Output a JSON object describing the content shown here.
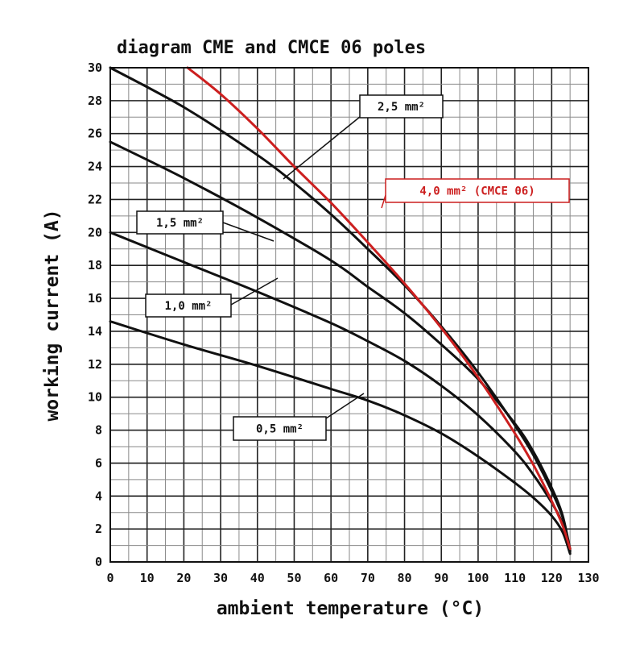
{
  "chart_data": {
    "type": "line",
    "title": "diagram CME and CMCE 06 poles",
    "xlabel": "ambient temperature (°C)",
    "ylabel": "working current (A)",
    "xlim": [
      0,
      130
    ],
    "ylim": [
      0,
      30
    ],
    "grid": true,
    "x_ticks": [
      "0",
      "10",
      "20",
      "30",
      "40",
      "50",
      "60",
      "70",
      "80",
      "90",
      "100",
      "110",
      "120",
      "130"
    ],
    "y_ticks": [
      "0",
      "2",
      "4",
      "6",
      "8",
      "10",
      "12",
      "14",
      "16",
      "18",
      "20",
      "22",
      "24",
      "26",
      "28",
      "30"
    ],
    "series": [
      {
        "name": "0,5 mm²",
        "color": "#111111",
        "x": [
          0,
          20,
          40,
          60,
          70,
          80,
          90,
          100,
          110,
          115,
          120,
          123,
          125
        ],
        "y": [
          14.6,
          13.2,
          11.9,
          10.5,
          9.8,
          8.9,
          7.8,
          6.4,
          4.8,
          3.9,
          2.8,
          1.8,
          0.5
        ]
      },
      {
        "name": "1,0 mm²",
        "color": "#111111",
        "x": [
          0,
          20,
          40,
          60,
          70,
          80,
          90,
          100,
          110,
          115,
          120,
          123,
          125
        ],
        "y": [
          20.0,
          18.2,
          16.4,
          14.5,
          13.4,
          12.2,
          10.7,
          8.9,
          6.7,
          5.3,
          3.6,
          2.3,
          0.6
        ]
      },
      {
        "name": "1,5 mm²",
        "color": "#111111",
        "x": [
          0,
          20,
          40,
          60,
          70,
          80,
          90,
          100,
          110,
          115,
          120,
          123,
          125
        ],
        "y": [
          25.5,
          23.3,
          20.9,
          18.3,
          16.7,
          15.1,
          13.2,
          11.1,
          8.4,
          6.7,
          4.5,
          2.8,
          0.7
        ]
      },
      {
        "name": "2,5 mm²",
        "color": "#111111",
        "x": [
          0,
          20,
          40,
          50,
          60,
          70,
          80,
          90,
          100,
          110,
          115,
          120,
          123,
          125
        ],
        "y": [
          30.0,
          27.6,
          24.7,
          23.0,
          21.1,
          19.0,
          16.8,
          14.3,
          11.5,
          8.3,
          6.5,
          4.3,
          2.7,
          0.8
        ]
      },
      {
        "name": "4,0 mm² (CMCE 06)",
        "color": "#cc1f1f",
        "x": [
          21,
          30,
          40,
          50,
          60,
          70,
          80,
          90,
          100,
          110,
          115,
          120,
          123,
          125
        ],
        "y": [
          30.0,
          28.4,
          26.3,
          24.0,
          21.8,
          19.4,
          16.9,
          14.2,
          11.2,
          7.8,
          5.9,
          3.7,
          2.2,
          0.8
        ]
      }
    ]
  },
  "callouts": [
    {
      "text": "2,5 mm²",
      "color": "#111111"
    },
    {
      "text": "4,0 mm² (CMCE 06)",
      "color": "#cc1f1f"
    },
    {
      "text": "1,5 mm²",
      "color": "#111111"
    },
    {
      "text": "1,0 mm²",
      "color": "#111111"
    },
    {
      "text": "0,5 mm²",
      "color": "#111111"
    }
  ]
}
